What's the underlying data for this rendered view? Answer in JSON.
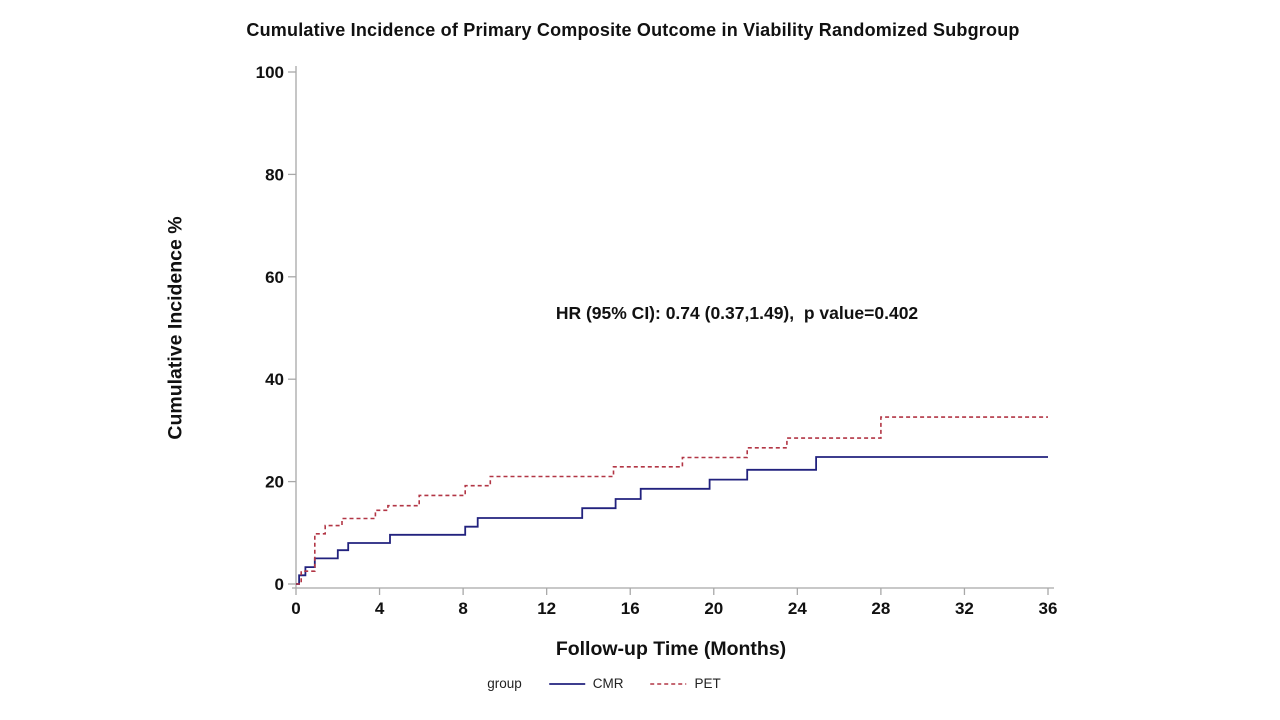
{
  "title": "Cumulative Incidence of Primary Composite Outcome in Viability Randomized Subgroup",
  "annotation": "HR (95% CI): 0.74 (0.37,1.49),  p value=0.402",
  "x_axis": {
    "label": "Follow-up Time (Months)",
    "ticks": [
      0,
      4,
      8,
      12,
      16,
      20,
      24,
      28,
      32,
      36
    ]
  },
  "y_axis": {
    "label": "Cumulative Incidence %",
    "ticks": [
      0,
      20,
      40,
      60,
      80,
      100
    ]
  },
  "legend": {
    "title": "group",
    "items": [
      {
        "label": "CMR",
        "color": "#22227e",
        "style": "solid"
      },
      {
        "label": "PET",
        "color": "#b23645",
        "style": "dashed"
      }
    ]
  },
  "colors": {
    "cmr_line": "#22227e",
    "pet_line": "#b23645",
    "axis_line": "#a8a8a8",
    "text": "#111111"
  },
  "chart_data": {
    "type": "line",
    "subtype": "kaplan-meier-step",
    "title": "Cumulative Incidence of Primary Composite Outcome in Viability Randomized Subgroup",
    "xlabel": "Follow-up Time (Months)",
    "ylabel": "Cumulative Incidence %",
    "xlim": [
      0,
      36
    ],
    "ylim": [
      0,
      100
    ],
    "x_ticks": [
      0,
      4,
      8,
      12,
      16,
      20,
      24,
      28,
      32,
      36
    ],
    "y_ticks": [
      0,
      20,
      40,
      60,
      80,
      100
    ],
    "grid": false,
    "legend_position": "bottom-center",
    "annotation": "HR (95% CI): 0.74 (0.37,1.49),  p value=0.402",
    "series": [
      {
        "name": "CMR",
        "color": "#22227e",
        "dash": "solid",
        "points": [
          [
            0,
            0
          ],
          [
            0.15,
            1.7
          ],
          [
            0.45,
            3.3
          ],
          [
            0.9,
            5.0
          ],
          [
            2.0,
            6.6
          ],
          [
            2.5,
            8.0
          ],
          [
            4.5,
            9.6
          ],
          [
            8.1,
            11.2
          ],
          [
            8.7,
            12.9
          ],
          [
            13.7,
            14.8
          ],
          [
            15.3,
            16.6
          ],
          [
            16.5,
            18.6
          ],
          [
            19.8,
            20.4
          ],
          [
            21.6,
            22.3
          ],
          [
            24.9,
            24.8
          ],
          [
            36,
            24.8
          ]
        ]
      },
      {
        "name": "PET",
        "color": "#b23645",
        "dash": "dashed",
        "points": [
          [
            0,
            0
          ],
          [
            0.25,
            2.5
          ],
          [
            0.9,
            9.8
          ],
          [
            1.4,
            11.4
          ],
          [
            2.2,
            12.8
          ],
          [
            3.8,
            14.4
          ],
          [
            4.4,
            15.3
          ],
          [
            5.9,
            17.3
          ],
          [
            8.1,
            19.2
          ],
          [
            9.3,
            21.0
          ],
          [
            15.2,
            22.9
          ],
          [
            18.5,
            24.7
          ],
          [
            21.6,
            26.6
          ],
          [
            23.5,
            28.5
          ],
          [
            28.0,
            32.6
          ],
          [
            36,
            32.6
          ]
        ]
      }
    ]
  }
}
